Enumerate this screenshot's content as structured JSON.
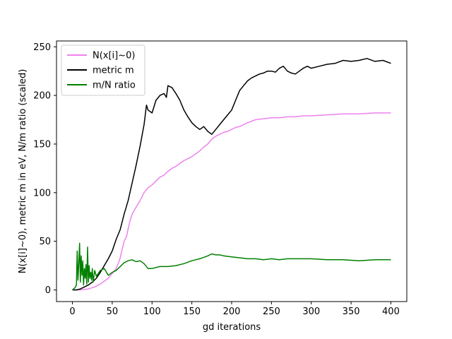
{
  "chart_data": {
    "type": "line",
    "title": "",
    "xlabel": "gd iterations",
    "ylabel": "N(x[i]~0), metric m in eV, N/m ratio (scaled)",
    "xlim": [
      -20,
      420
    ],
    "ylim": [
      -12,
      256
    ],
    "x_ticks": [
      0,
      50,
      100,
      150,
      200,
      250,
      300,
      350,
      400
    ],
    "y_ticks": [
      0,
      50,
      100,
      150,
      200,
      250
    ],
    "legend_position": "top-left",
    "grid": false,
    "series": [
      {
        "name": "N(x[i]~0)",
        "color": "#ee82ee",
        "x": [
          0,
          10,
          20,
          28,
          35,
          40,
          45,
          50,
          55,
          58,
          60,
          62,
          65,
          68,
          70,
          72,
          75,
          80,
          85,
          90,
          95,
          100,
          105,
          110,
          115,
          120,
          125,
          130,
          135,
          140,
          145,
          150,
          155,
          160,
          165,
          170,
          175,
          180,
          185,
          190,
          195,
          200,
          205,
          210,
          215,
          220,
          230,
          240,
          250,
          260,
          270,
          280,
          290,
          300,
          320,
          340,
          360,
          380,
          400
        ],
        "values": [
          0,
          0,
          1,
          3,
          6,
          9,
          12,
          17,
          22,
          28,
          33,
          40,
          50,
          55,
          63,
          70,
          78,
          85,
          92,
          100,
          105,
          108,
          112,
          116,
          118,
          122,
          125,
          127,
          130,
          133,
          135,
          137,
          140,
          143,
          147,
          150,
          155,
          158,
          160,
          162,
          163,
          165,
          167,
          168,
          170,
          172,
          175,
          176,
          177,
          177,
          178,
          178,
          179,
          179,
          180,
          181,
          181,
          182,
          182
        ]
      },
      {
        "name": "metric m",
        "color": "#000000",
        "x": [
          0,
          5,
          10,
          15,
          20,
          25,
          30,
          35,
          40,
          45,
          50,
          55,
          60,
          65,
          70,
          75,
          80,
          85,
          90,
          93,
          95,
          100,
          105,
          110,
          115,
          118,
          120,
          125,
          130,
          135,
          140,
          145,
          150,
          155,
          160,
          165,
          170,
          175,
          180,
          185,
          190,
          195,
          200,
          205,
          210,
          215,
          220,
          225,
          230,
          235,
          240,
          245,
          250,
          255,
          260,
          265,
          270,
          275,
          280,
          285,
          290,
          295,
          300,
          310,
          320,
          330,
          340,
          350,
          360,
          370,
          380,
          390,
          400
        ],
        "values": [
          0,
          0,
          1,
          3,
          5,
          8,
          12,
          18,
          25,
          32,
          40,
          52,
          62,
          78,
          92,
          110,
          128,
          148,
          170,
          190,
          185,
          182,
          195,
          200,
          202,
          198,
          210,
          208,
          202,
          195,
          185,
          178,
          172,
          168,
          165,
          168,
          163,
          160,
          165,
          170,
          175,
          180,
          185,
          195,
          205,
          210,
          215,
          218,
          220,
          222,
          223,
          225,
          225,
          224,
          228,
          230,
          225,
          223,
          222,
          225,
          228,
          230,
          228,
          230,
          232,
          233,
          236,
          235,
          236,
          238,
          235,
          236,
          233
        ]
      },
      {
        "name": "m/N ratio",
        "color": "#008000",
        "x": [
          0,
          3,
          5,
          6,
          7,
          8,
          9,
          10,
          11,
          12,
          13,
          14,
          15,
          16,
          17,
          18,
          19,
          20,
          21,
          22,
          23,
          24,
          25,
          26,
          28,
          30,
          35,
          40,
          45,
          50,
          55,
          60,
          65,
          70,
          75,
          80,
          85,
          90,
          95,
          100,
          110,
          120,
          130,
          140,
          150,
          160,
          170,
          175,
          180,
          185,
          190,
          200,
          210,
          220,
          230,
          240,
          250,
          260,
          270,
          280,
          300,
          320,
          340,
          360,
          380,
          400
        ],
        "values": [
          0,
          2,
          5,
          40,
          10,
          28,
          48,
          8,
          35,
          15,
          30,
          5,
          22,
          12,
          26,
          6,
          44,
          8,
          25,
          12,
          18,
          10,
          22,
          8,
          20,
          14,
          20,
          22,
          15,
          18,
          20,
          24,
          28,
          30,
          31,
          29,
          30,
          27,
          22,
          22,
          24,
          24,
          25,
          27,
          30,
          32,
          35,
          37,
          36,
          36,
          35,
          34,
          33,
          32,
          32,
          31,
          32,
          31,
          32,
          32,
          32,
          31,
          31,
          30,
          31,
          31
        ]
      }
    ]
  }
}
